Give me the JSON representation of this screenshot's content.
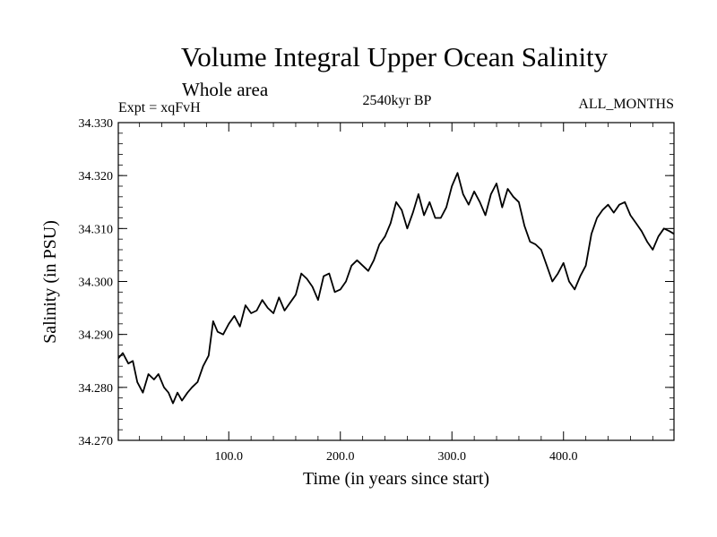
{
  "chart_data": {
    "type": "line",
    "title": "Volume Integral Upper Ocean Salinity",
    "subtitle": "Whole area",
    "experiment_label": "Expt = xqFvH",
    "period_label": "2540kyr BP",
    "season_label": "ALL_MONTHS",
    "xlabel": "Time (in years since start)",
    "ylabel": "Salinity (in PSU)",
    "xlim": [
      1,
      499
    ],
    "ylim": [
      34.27,
      34.33
    ],
    "x_ticks": [
      100,
      200,
      300,
      400
    ],
    "x_tick_labels": [
      "100.0",
      "200.0",
      "300.0",
      "400.0"
    ],
    "y_ticks": [
      34.27,
      34.28,
      34.29,
      34.3,
      34.31,
      34.32,
      34.33
    ],
    "y_tick_labels": [
      "34.270",
      "34.280",
      "34.290",
      "34.300",
      "34.310",
      "34.320",
      "34.330"
    ],
    "grid": false,
    "series": [
      {
        "name": "Salinity",
        "x": [
          1,
          5,
          10,
          14,
          18,
          23,
          28,
          33,
          37,
          42,
          46,
          50,
          54,
          58,
          63,
          67,
          72,
          77,
          82,
          86,
          90,
          95,
          100,
          105,
          110,
          115,
          120,
          125,
          130,
          135,
          140,
          145,
          150,
          155,
          160,
          165,
          170,
          175,
          180,
          185,
          190,
          195,
          200,
          205,
          210,
          215,
          220,
          225,
          230,
          235,
          240,
          245,
          250,
          255,
          260,
          265,
          270,
          275,
          280,
          285,
          290,
          295,
          300,
          305,
          310,
          315,
          320,
          325,
          330,
          335,
          340,
          345,
          350,
          355,
          360,
          365,
          370,
          375,
          380,
          385,
          390,
          395,
          400,
          405,
          410,
          415,
          420,
          425,
          430,
          435,
          440,
          445,
          450,
          455,
          460,
          465,
          470,
          475,
          480,
          485,
          490,
          495,
          499
        ],
        "values": [
          34.2855,
          34.2865,
          34.2845,
          34.285,
          34.281,
          34.279,
          34.2825,
          34.2815,
          34.2825,
          34.28,
          34.279,
          34.277,
          34.279,
          34.2775,
          34.279,
          34.28,
          34.281,
          34.284,
          34.286,
          34.2925,
          34.2905,
          34.29,
          34.292,
          34.2935,
          34.2915,
          34.2955,
          34.294,
          34.2945,
          34.2965,
          34.295,
          34.294,
          34.297,
          34.2945,
          34.296,
          34.2975,
          34.3015,
          34.3005,
          34.299,
          34.2965,
          34.301,
          34.3015,
          34.298,
          34.2985,
          34.3,
          34.303,
          34.304,
          34.303,
          34.302,
          34.304,
          34.307,
          34.3085,
          34.311,
          34.315,
          34.3135,
          34.31,
          34.313,
          34.3165,
          34.3125,
          34.315,
          34.312,
          34.312,
          34.314,
          34.318,
          34.3205,
          34.3165,
          34.3145,
          34.317,
          34.315,
          34.3125,
          34.3165,
          34.3185,
          34.314,
          34.3175,
          34.316,
          34.315,
          34.3105,
          34.3075,
          34.307,
          34.306,
          34.303,
          34.3,
          34.3015,
          34.3035,
          34.3,
          34.2985,
          34.301,
          34.303,
          34.309,
          34.312,
          34.3135,
          34.3145,
          34.313,
          34.3145,
          34.315,
          34.3125,
          34.311,
          34.3095,
          34.3075,
          34.306,
          34.3085,
          34.31,
          34.3095,
          34.309
        ]
      }
    ]
  }
}
